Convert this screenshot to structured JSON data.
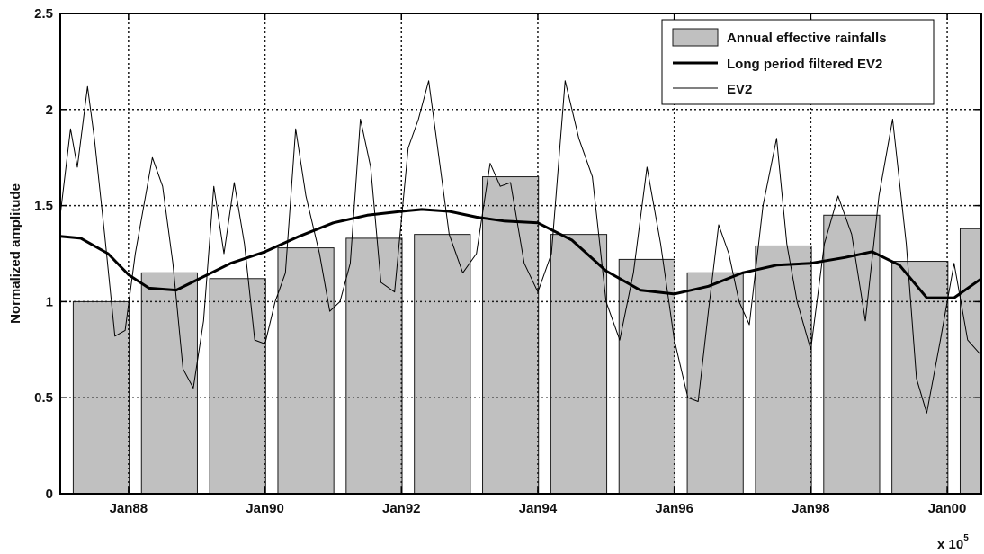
{
  "chart_data": {
    "type": "bar",
    "xlabel": "",
    "ylabel": "Normalized amplitude",
    "x_exponent_base": "x 10",
    "x_exponent_power": "5",
    "ylim": [
      0,
      2.5
    ],
    "yticks": [
      "0",
      "0.5",
      "1",
      "1.5",
      "2",
      "2.5"
    ],
    "y_tick_values": [
      0,
      0.5,
      1,
      1.5,
      2,
      2.5
    ],
    "xlim": [
      0.5,
      14.0
    ],
    "xtick_positions": [
      1.5,
      3.5,
      5.5,
      7.5,
      9.5,
      11.5,
      13.5
    ],
    "xticks": [
      "Jan88",
      "Jan90",
      "Jan92",
      "Jan94",
      "Jan96",
      "Jan98",
      "Jan00"
    ],
    "grid": true,
    "legend_position": "top-right",
    "series": [
      {
        "name": "Annual effective rainfalls",
        "kind": "bar",
        "color": "#c0c0c0",
        "bar_width": 0.82,
        "x": [
          1.1,
          2.1,
          3.1,
          4.1,
          5.1,
          6.1,
          7.1,
          8.1,
          9.1,
          10.1,
          11.1,
          12.1,
          13.1,
          14.1
        ],
        "values": [
          1.0,
          1.15,
          1.12,
          1.28,
          1.33,
          1.35,
          1.65,
          1.35,
          1.22,
          1.15,
          1.29,
          1.45,
          1.21,
          1.38
        ]
      },
      {
        "name": "Long period filtered EV2",
        "kind": "line",
        "color": "#000000",
        "stroke_width": 3,
        "x": [
          0.5,
          0.8,
          1.2,
          1.5,
          1.8,
          2.2,
          2.6,
          3.0,
          3.5,
          4.0,
          4.5,
          5.0,
          5.5,
          5.8,
          6.2,
          6.6,
          7.0,
          7.5,
          8.0,
          8.5,
          9.0,
          9.5,
          10.0,
          10.5,
          11.0,
          11.5,
          12.0,
          12.4,
          12.8,
          13.2,
          13.6,
          14.0
        ],
        "y": [
          1.34,
          1.33,
          1.25,
          1.14,
          1.07,
          1.06,
          1.13,
          1.2,
          1.26,
          1.34,
          1.41,
          1.45,
          1.47,
          1.48,
          1.47,
          1.44,
          1.42,
          1.41,
          1.32,
          1.16,
          1.06,
          1.04,
          1.08,
          1.15,
          1.19,
          1.2,
          1.23,
          1.26,
          1.19,
          1.02,
          1.02,
          1.12
        ]
      },
      {
        "name": "EV2",
        "kind": "line",
        "color": "#000000",
        "stroke_width": 1,
        "x": [
          0.5,
          0.65,
          0.75,
          0.9,
          1.0,
          1.15,
          1.3,
          1.45,
          1.6,
          1.7,
          1.85,
          2.0,
          2.15,
          2.3,
          2.45,
          2.6,
          2.75,
          2.9,
          3.05,
          3.2,
          3.35,
          3.5,
          3.65,
          3.8,
          3.95,
          4.1,
          4.3,
          4.45,
          4.6,
          4.75,
          4.9,
          5.05,
          5.2,
          5.4,
          5.6,
          5.75,
          5.9,
          6.05,
          6.2,
          6.4,
          6.6,
          6.8,
          6.95,
          7.1,
          7.3,
          7.5,
          7.7,
          7.9,
          8.1,
          8.3,
          8.5,
          8.7,
          8.9,
          9.1,
          9.3,
          9.5,
          9.7,
          9.85,
          10.0,
          10.15,
          10.3,
          10.45,
          10.6,
          10.8,
          11.0,
          11.15,
          11.3,
          11.5,
          11.7,
          11.9,
          12.1,
          12.3,
          12.5,
          12.7,
          12.9,
          13.05,
          13.2,
          13.4,
          13.6,
          13.8,
          14.0
        ],
        "y": [
          1.45,
          1.9,
          1.7,
          2.12,
          1.85,
          1.35,
          0.82,
          0.85,
          1.25,
          1.45,
          1.75,
          1.6,
          1.2,
          0.65,
          0.55,
          0.9,
          1.6,
          1.25,
          1.62,
          1.3,
          0.8,
          0.78,
          1.0,
          1.15,
          1.9,
          1.55,
          1.25,
          0.95,
          1.0,
          1.2,
          1.95,
          1.7,
          1.1,
          1.05,
          1.8,
          1.95,
          2.15,
          1.75,
          1.35,
          1.15,
          1.25,
          1.72,
          1.6,
          1.62,
          1.2,
          1.05,
          1.25,
          2.15,
          1.85,
          1.65,
          1.0,
          0.8,
          1.15,
          1.7,
          1.3,
          0.8,
          0.5,
          0.48,
          0.95,
          1.4,
          1.25,
          1.0,
          0.88,
          1.5,
          1.85,
          1.3,
          1.0,
          0.75,
          1.3,
          1.55,
          1.35,
          0.9,
          1.55,
          1.95,
          1.3,
          0.6,
          0.42,
          0.8,
          1.2,
          0.8,
          0.72
        ]
      }
    ]
  },
  "colors": {
    "bar_fill": "#c0c0c0",
    "bar_stroke": "#1a1a1a",
    "grid": "#1a1a1a",
    "axes": "#000000"
  }
}
